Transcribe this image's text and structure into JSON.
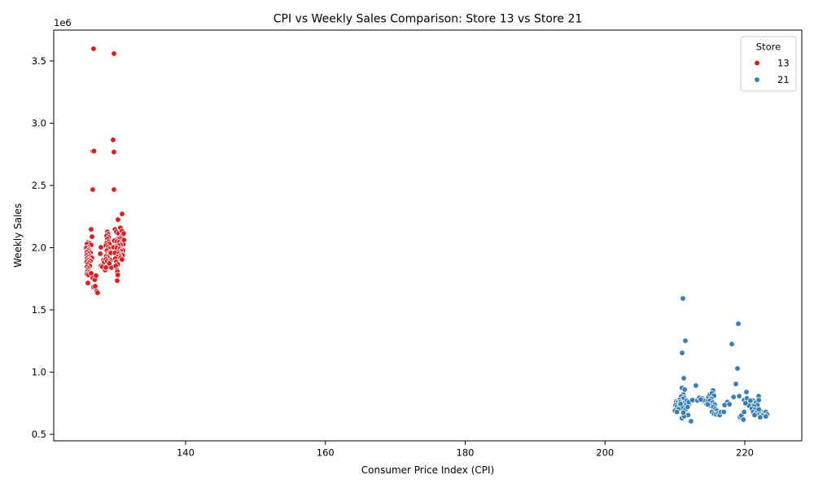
{
  "chart_data": {
    "type": "scatter",
    "title": "CPI vs Weekly Sales Comparison: Store 13 vs Store 21",
    "xlabel": "Consumer Price Index (CPI)",
    "ylabel": "Weekly Sales",
    "y_offset_label": "1e6",
    "xlim": [
      121.14,
      228.15
    ],
    "ylim": [
      448000,
      3748000
    ],
    "x_ticks": [
      140,
      160,
      180,
      200,
      220
    ],
    "x_tick_labels": [
      "140",
      "160",
      "180",
      "200",
      "220"
    ],
    "y_ticks": [
      500000,
      1000000,
      1500000,
      2000000,
      2500000,
      3000000,
      3500000
    ],
    "y_tick_labels": [
      "0.5",
      "1.0",
      "1.5",
      "2.0",
      "2.5",
      "3.0",
      "3.5"
    ],
    "grid": false,
    "legend": {
      "title": "Store",
      "placement": "upper right"
    },
    "series": [
      {
        "name": "13",
        "color": "#e41a1c",
        "points": [
          [
            126.84,
            3598000
          ],
          [
            129.75,
            3559000
          ],
          [
            129.64,
            2866000
          ],
          [
            126.72,
            2775000
          ],
          [
            126.9,
            2776000
          ],
          [
            129.75,
            2768000
          ],
          [
            126.72,
            2467000
          ],
          [
            129.75,
            2467000
          ],
          [
            130.92,
            2271000
          ],
          [
            130.33,
            2225000
          ],
          [
            126.49,
            2147000
          ],
          [
            126.61,
            2088000
          ],
          [
            126.03,
            2042000
          ],
          [
            126.26,
            2036000
          ],
          [
            125.9,
            2029000
          ],
          [
            126.5,
            2022000
          ],
          [
            126.03,
            2003000
          ],
          [
            125.8,
            1997000
          ],
          [
            126.15,
            1984000
          ],
          [
            126.03,
            1977000
          ],
          [
            125.9,
            1964000
          ],
          [
            126.4,
            1958000
          ],
          [
            126.1,
            1951000
          ],
          [
            125.85,
            1938000
          ],
          [
            126.3,
            1932000
          ],
          [
            126.0,
            1925000
          ],
          [
            126.6,
            1918000
          ],
          [
            125.9,
            1912000
          ],
          [
            126.2,
            1905000
          ],
          [
            126.05,
            1899000
          ],
          [
            126.4,
            1892000
          ],
          [
            125.85,
            1886000
          ],
          [
            126.15,
            1879000
          ],
          [
            126.0,
            1866000
          ],
          [
            126.3,
            1853000
          ],
          [
            125.9,
            1846000
          ],
          [
            126.1,
            1833000
          ],
          [
            126.0,
            1820000
          ],
          [
            125.95,
            1807000
          ],
          [
            126.2,
            1800000
          ],
          [
            125.9,
            1787000
          ],
          [
            126.1,
            1781000
          ],
          [
            126.5,
            1794000
          ],
          [
            126.03,
            1716000
          ],
          [
            126.72,
            1755000
          ],
          [
            127.0,
            1742000
          ],
          [
            127.19,
            1775000
          ],
          [
            126.84,
            1684000
          ],
          [
            127.07,
            1690000
          ],
          [
            127.3,
            1650000
          ],
          [
            127.42,
            1637000
          ],
          [
            127.89,
            2003000
          ],
          [
            127.8,
            1951000
          ],
          [
            127.9,
            1853000
          ],
          [
            128.1,
            1846000
          ],
          [
            128.24,
            1899000
          ],
          [
            128.36,
            1886000
          ],
          [
            128.5,
            1820000
          ],
          [
            128.6,
            1840000
          ],
          [
            128.82,
            2127000
          ],
          [
            128.9,
            2108000
          ],
          [
            128.7,
            2095000
          ],
          [
            129.0,
            2082000
          ],
          [
            128.82,
            2069000
          ],
          [
            128.95,
            2049000
          ],
          [
            128.7,
            2036000
          ],
          [
            129.1,
            2029000
          ],
          [
            128.6,
            2016000
          ],
          [
            128.9,
            2003000
          ],
          [
            129.05,
            1990000
          ],
          [
            128.75,
            1977000
          ],
          [
            129.2,
            1964000
          ],
          [
            128.85,
            1951000
          ],
          [
            129.1,
            1945000
          ],
          [
            129.3,
            1958000
          ],
          [
            128.65,
            1932000
          ],
          [
            128.9,
            1925000
          ],
          [
            129.0,
            1912000
          ],
          [
            128.6,
            1905000
          ],
          [
            128.8,
            1892000
          ],
          [
            129.3,
            1899000
          ],
          [
            129.15,
            1886000
          ],
          [
            129.4,
            1840000
          ],
          [
            129.1,
            1873000
          ],
          [
            129.9,
            2147000
          ],
          [
            130.1,
            2127000
          ],
          [
            130.4,
            2114000
          ],
          [
            130.68,
            2160000
          ],
          [
            130.9,
            2134000
          ],
          [
            131.0,
            2101000
          ],
          [
            130.8,
            2088000
          ],
          [
            130.6,
            2075000
          ],
          [
            130.3,
            2069000
          ],
          [
            130.0,
            2062000
          ],
          [
            129.8,
            2056000
          ],
          [
            130.2,
            2049000
          ],
          [
            130.5,
            2042000
          ],
          [
            130.9,
            2036000
          ],
          [
            131.1,
            2029000
          ],
          [
            130.7,
            2022000
          ],
          [
            130.4,
            2016000
          ],
          [
            130.0,
            2009000
          ],
          [
            129.7,
            2003000
          ],
          [
            130.15,
            1997000
          ],
          [
            130.6,
            1990000
          ],
          [
            130.95,
            1984000
          ],
          [
            131.05,
            1977000
          ],
          [
            130.75,
            1970000
          ],
          [
            130.35,
            1964000
          ],
          [
            129.9,
            1958000
          ],
          [
            130.5,
            1951000
          ],
          [
            130.85,
            1945000
          ],
          [
            131.0,
            1938000
          ],
          [
            130.6,
            1932000
          ],
          [
            130.2,
            1925000
          ],
          [
            130.7,
            1918000
          ],
          [
            130.9,
            1905000
          ],
          [
            129.95,
            1912000
          ],
          [
            130.1,
            1886000
          ],
          [
            130.3,
            1866000
          ],
          [
            130.0,
            1853000
          ],
          [
            130.2,
            1820000
          ],
          [
            130.25,
            1807000
          ],
          [
            130.22,
            1735000
          ],
          [
            130.3,
            1781000
          ],
          [
            131.15,
            2114000
          ],
          [
            131.2,
            2062000
          ]
        ]
      },
      {
        "name": "21",
        "color": "#377eb8",
        "points": [
          [
            211.15,
            1592000
          ],
          [
            211.5,
            1252000
          ],
          [
            211.03,
            1154000
          ],
          [
            211.27,
            951000
          ],
          [
            211.0,
            873000
          ],
          [
            211.4,
            860000
          ],
          [
            211.2,
            820000
          ],
          [
            210.9,
            805000
          ],
          [
            211.3,
            795000
          ],
          [
            211.1,
            785000
          ],
          [
            210.6,
            775000
          ],
          [
            210.2,
            762000
          ],
          [
            210.4,
            755000
          ],
          [
            210.8,
            760000
          ],
          [
            211.0,
            748000
          ],
          [
            211.4,
            752000
          ],
          [
            211.7,
            770000
          ],
          [
            212.0,
            742000
          ],
          [
            211.6,
            735000
          ],
          [
            210.1,
            735000
          ],
          [
            210.3,
            722000
          ],
          [
            210.7,
            730000
          ],
          [
            211.1,
            715000
          ],
          [
            210.0,
            690000
          ],
          [
            210.5,
            702000
          ],
          [
            211.5,
            700000
          ],
          [
            211.9,
            655000
          ],
          [
            211.0,
            630000
          ],
          [
            211.3,
            645000
          ],
          [
            212.3,
            605000
          ],
          [
            210.3,
            680000
          ],
          [
            211.8,
            720000
          ],
          [
            211.2,
            675000
          ],
          [
            210.8,
            745000
          ],
          [
            212.0,
            760000
          ],
          [
            213.0,
            892000
          ],
          [
            212.5,
            775000
          ],
          [
            213.2,
            772000
          ],
          [
            213.5,
            795000
          ],
          [
            213.9,
            790000
          ],
          [
            214.2,
            760000
          ],
          [
            214.5,
            745000
          ],
          [
            214.3,
            770000
          ],
          [
            214.8,
            800000
          ],
          [
            215.0,
            820000
          ],
          [
            215.46,
            853000
          ],
          [
            215.3,
            830000
          ],
          [
            215.6,
            810000
          ],
          [
            215.2,
            785000
          ],
          [
            215.0,
            770000
          ],
          [
            215.4,
            755000
          ],
          [
            215.7,
            740000
          ],
          [
            215.1,
            730000
          ],
          [
            215.5,
            720000
          ],
          [
            215.8,
            705000
          ],
          [
            216.0,
            690000
          ],
          [
            215.3,
            680000
          ],
          [
            215.6,
            665000
          ],
          [
            215.9,
            660000
          ],
          [
            216.2,
            670000
          ],
          [
            216.4,
            655000
          ],
          [
            216.6,
            680000
          ],
          [
            217.0,
            680000
          ],
          [
            217.3,
            740000
          ],
          [
            217.5,
            760000
          ],
          [
            217.1,
            735000
          ],
          [
            217.8,
            742000
          ],
          [
            214.0,
            775000
          ],
          [
            214.7,
            740000
          ],
          [
            213.7,
            780000
          ],
          [
            219.07,
            1389000
          ],
          [
            218.14,
            1225000
          ],
          [
            218.95,
            1029000
          ],
          [
            218.72,
            905000
          ],
          [
            220.23,
            840000
          ],
          [
            221.98,
            807000
          ],
          [
            219.2,
            807000
          ],
          [
            218.4,
            800000
          ],
          [
            219.9,
            775000
          ],
          [
            220.5,
            760000
          ],
          [
            220.3,
            790000
          ],
          [
            221.2,
            770000
          ],
          [
            221.6,
            755000
          ],
          [
            222.0,
            775000
          ],
          [
            221.8,
            735000
          ],
          [
            220.9,
            740000
          ],
          [
            220.6,
            730000
          ],
          [
            221.3,
            725000
          ],
          [
            221.0,
            705000
          ],
          [
            221.5,
            700000
          ],
          [
            221.2,
            680000
          ],
          [
            221.6,
            670000
          ],
          [
            222.1,
            665000
          ],
          [
            222.4,
            680000
          ],
          [
            222.7,
            670000
          ],
          [
            223.0,
            680000
          ],
          [
            223.2,
            660000
          ],
          [
            222.9,
            645000
          ],
          [
            222.5,
            650000
          ],
          [
            222.2,
            637000
          ],
          [
            223.0,
            644000
          ],
          [
            219.6,
            660000
          ],
          [
            219.3,
            640000
          ],
          [
            219.5,
            650000
          ],
          [
            219.8,
            618000
          ],
          [
            219.9,
            680000
          ],
          [
            220.1,
            750000
          ],
          [
            221.4,
            655000
          ],
          [
            222.0,
            700000
          ],
          [
            220.8,
            770000
          ]
        ]
      }
    ]
  }
}
